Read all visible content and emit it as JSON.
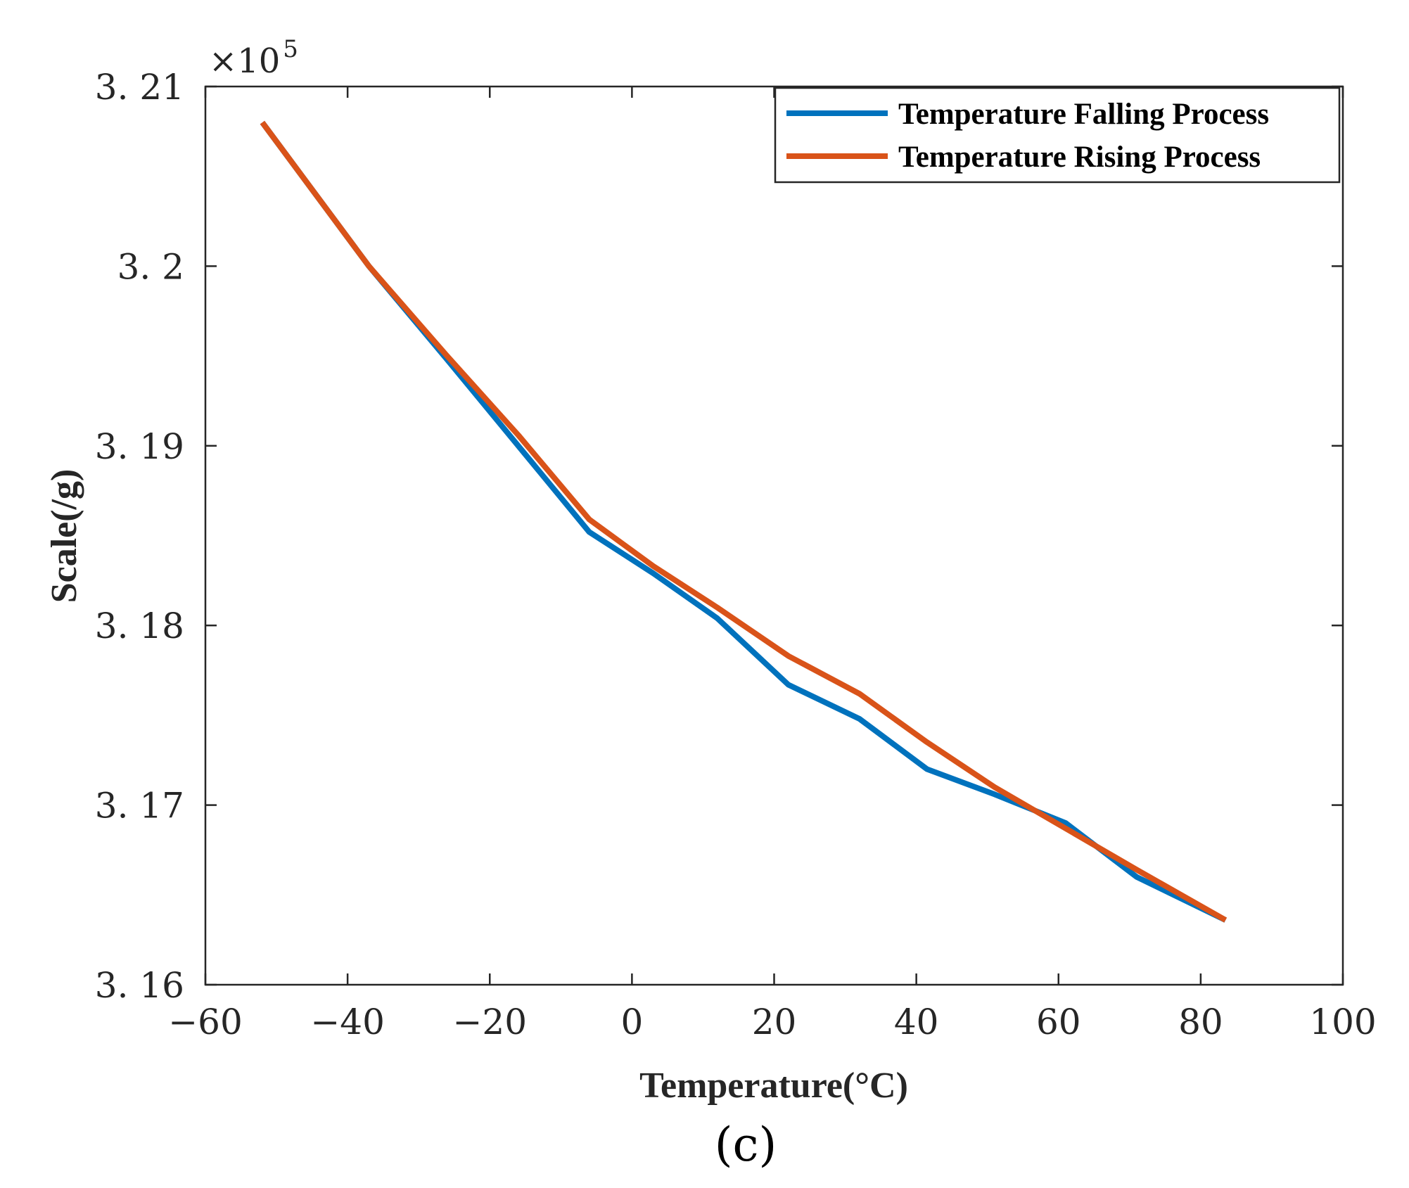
{
  "chart_data": {
    "type": "line",
    "title": "",
    "xlabel": "Temperature(°C)",
    "ylabel": "Scale(/g)",
    "xlim": [
      -60,
      100
    ],
    "ylim": [
      316000,
      321000
    ],
    "xticks": [
      -60,
      -40,
      -20,
      0,
      20,
      40,
      60,
      80,
      100
    ],
    "xtick_labels": [
      "−60",
      "−40",
      "−20",
      "0",
      "20",
      "40",
      "60",
      "80",
      "100"
    ],
    "yticks": [
      316000,
      317000,
      318000,
      319000,
      320000,
      321000
    ],
    "ytick_labels": [
      "3. 16",
      "3. 17",
      "3. 18",
      "3. 19",
      "3. 2",
      "3. 21"
    ],
    "y_exponent_base": "×10",
    "y_exponent_power": "5",
    "grid": false,
    "legend_position": "top-right",
    "panel_label": "(c)",
    "series": [
      {
        "name": "Temperature Falling Process",
        "color": "#0072BD",
        "x": [
          -52,
          -37,
          -26,
          -16,
          -6,
          3,
          12,
          22,
          32,
          41.5,
          51,
          61,
          71,
          83.5
        ],
        "y": [
          320800,
          320000,
          319480,
          319000,
          318520,
          318290,
          318040,
          317670,
          317480,
          317200,
          317060,
          316900,
          316600,
          316360
        ]
      },
      {
        "name": "Temperature Rising Process",
        "color": "#D95319",
        "x": [
          -52,
          -37,
          -26,
          -16,
          -6,
          3,
          12,
          22,
          32,
          41.5,
          51,
          61,
          71,
          83.5
        ],
        "y": [
          320800,
          320000,
          319500,
          319060,
          318590,
          318330,
          318100,
          317830,
          317620,
          317350,
          317100,
          316870,
          316640,
          316360
        ]
      }
    ]
  }
}
